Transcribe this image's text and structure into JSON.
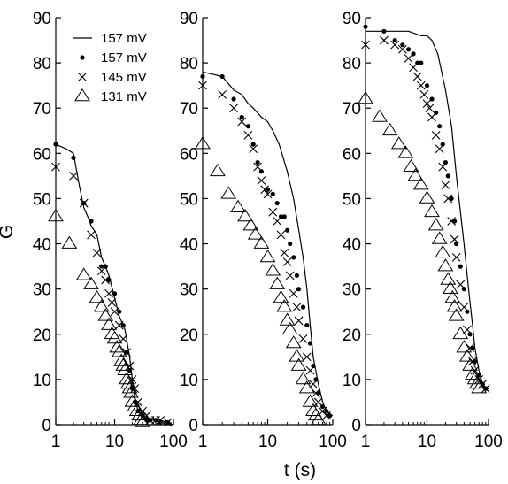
{
  "chart_data": [
    {
      "type": "scatter",
      "xscale": "log",
      "xlim": [
        1,
        100
      ],
      "ylim": [
        0,
        90
      ],
      "x_ticks": [
        1,
        10,
        100
      ],
      "y_ticks": [
        0,
        10,
        20,
        30,
        40,
        50,
        60,
        70,
        80,
        90
      ],
      "ylabel": "G",
      "legend": {
        "position": "top-right"
      },
      "series": [
        {
          "name": "157 mV",
          "marker": "line",
          "x": [
            1,
            1.5,
            2,
            2.5,
            3,
            3.5,
            4,
            5,
            6,
            7,
            8,
            10,
            12,
            15,
            18,
            20,
            22,
            25,
            30,
            40,
            60,
            100
          ],
          "y": [
            62,
            61,
            60,
            53,
            48,
            46,
            44,
            42,
            37,
            35,
            33,
            28,
            24,
            21,
            15,
            10,
            6,
            3,
            2,
            1,
            1,
            0
          ]
        },
        {
          "name": "157 mV",
          "marker": "dot",
          "x": [
            1,
            2,
            3,
            4,
            6,
            7,
            8,
            10,
            12,
            14,
            16,
            18,
            20,
            22,
            25,
            30,
            35,
            40,
            50,
            60,
            80
          ],
          "y": [
            62,
            59,
            49,
            45,
            35,
            35,
            32,
            29,
            25,
            22,
            16,
            12,
            8,
            5,
            3,
            2,
            1,
            1,
            1,
            0.5,
            0.5
          ]
        },
        {
          "name": "145 mV",
          "marker": "cross",
          "x": [
            1,
            2,
            3,
            4,
            5,
            6,
            7,
            8,
            9,
            10,
            12,
            14,
            16,
            18,
            20,
            22,
            25,
            30,
            35,
            40,
            50,
            60,
            80
          ],
          "y": [
            57,
            55,
            49,
            42,
            38,
            34,
            32,
            29,
            27,
            25,
            22,
            19,
            16,
            13,
            10,
            8,
            5,
            3,
            2,
            1,
            1,
            1,
            0.5
          ]
        },
        {
          "name": "131 mV",
          "marker": "triangle",
          "x": [
            1,
            1.7,
            3,
            4,
            5,
            6,
            7,
            8,
            9,
            10,
            11,
            12,
            13,
            14,
            15,
            16,
            17,
            18,
            19,
            20,
            22,
            24,
            26,
            28,
            30
          ],
          "y": [
            46,
            40,
            33,
            31,
            28,
            26,
            24,
            22,
            20,
            19,
            17,
            16,
            14,
            13,
            12,
            10,
            9,
            8,
            7,
            5,
            4,
            3,
            2,
            1,
            0.5
          ]
        }
      ]
    },
    {
      "type": "scatter",
      "xscale": "log",
      "xlim": [
        1,
        100
      ],
      "ylim": [
        0,
        90
      ],
      "x_ticks": [
        1,
        10,
        100
      ],
      "y_ticks": [
        0,
        10,
        20,
        30,
        40,
        50,
        60,
        70,
        80,
        90
      ],
      "xlabel": "t (s)",
      "series": [
        {
          "marker": "line",
          "x": [
            1,
            2,
            3,
            4,
            5,
            6,
            8,
            10,
            12,
            15,
            20,
            25,
            30,
            35,
            40,
            45,
            50,
            60,
            70,
            80,
            100
          ],
          "y": [
            78,
            77,
            74,
            73,
            71,
            70,
            68,
            67,
            65,
            62,
            56,
            50,
            43,
            37,
            30,
            22,
            15,
            9,
            5,
            3,
            2
          ]
        },
        {
          "marker": "dot",
          "x": [
            1,
            2,
            3,
            4,
            5,
            6,
            7,
            8,
            10,
            12,
            14,
            16,
            18,
            20,
            22,
            25,
            28,
            30,
            35,
            40,
            45,
            50,
            55,
            60,
            70,
            80,
            90
          ],
          "y": [
            77,
            77,
            72,
            68,
            66,
            62,
            58,
            56,
            52,
            51,
            49,
            46,
            46,
            43,
            40,
            37,
            33,
            30,
            26,
            22,
            18,
            13,
            10,
            7,
            4,
            3,
            2
          ]
        },
        {
          "marker": "cross",
          "x": [
            1,
            2,
            3,
            4,
            5,
            6,
            7,
            8,
            9,
            10,
            12,
            14,
            16,
            18,
            20,
            22,
            25,
            28,
            30,
            35,
            40,
            45,
            50,
            55,
            60,
            70,
            80
          ],
          "y": [
            75,
            73,
            70,
            67,
            64,
            61,
            57,
            54,
            52,
            51,
            47,
            45,
            42,
            38,
            36,
            33,
            29,
            26,
            23,
            19,
            15,
            12,
            9,
            7,
            5,
            3,
            2
          ]
        },
        {
          "marker": "triangle",
          "x": [
            1,
            1.7,
            2.5,
            3.5,
            4.5,
            5.5,
            6.5,
            8,
            10,
            12,
            14,
            16,
            18,
            20,
            22,
            25,
            28,
            30,
            35,
            40,
            45,
            50,
            55,
            60
          ],
          "y": [
            62,
            56,
            51,
            48,
            46,
            44,
            42,
            40,
            37,
            34,
            31,
            28,
            26,
            23,
            21,
            18,
            15,
            13,
            10,
            8,
            5,
            3,
            2,
            1
          ]
        }
      ]
    },
    {
      "type": "scatter",
      "xscale": "log",
      "xlim": [
        1,
        100
      ],
      "ylim": [
        0,
        90
      ],
      "x_ticks": [
        1,
        10,
        100
      ],
      "y_ticks": [
        0,
        10,
        20,
        30,
        40,
        50,
        60,
        70,
        80,
        90
      ],
      "series": [
        {
          "marker": "line",
          "x": [
            1,
            2,
            3,
            5,
            8,
            10,
            12,
            15,
            20,
            25,
            30,
            35,
            40,
            45,
            50,
            55,
            60,
            70,
            80,
            90,
            100
          ],
          "y": [
            87,
            87,
            87,
            87,
            86,
            86,
            85,
            82,
            74,
            66,
            55,
            47,
            40,
            33,
            27,
            22,
            17,
            12,
            9,
            8,
            8
          ]
        },
        {
          "marker": "dot",
          "x": [
            1,
            2,
            3,
            4,
            5,
            6,
            7,
            8,
            10,
            12,
            14,
            16,
            18,
            20,
            22,
            25,
            28,
            30,
            35,
            40,
            45,
            50,
            55,
            60,
            70,
            80,
            90
          ],
          "y": [
            88,
            87,
            85,
            84,
            83,
            82,
            80,
            80,
            75,
            72,
            69,
            66,
            62,
            58,
            55,
            50,
            45,
            40,
            35,
            30,
            25,
            20,
            17,
            14,
            11,
            9,
            8
          ]
        },
        {
          "marker": "cross",
          "x": [
            1,
            2,
            3,
            4,
            5,
            6,
            7,
            8,
            9,
            10,
            11,
            12,
            14,
            16,
            18,
            20,
            22,
            25,
            28,
            30,
            35,
            40,
            45,
            50,
            55,
            60,
            70,
            80,
            90
          ],
          "y": [
            84,
            85,
            84,
            83,
            81,
            79,
            77,
            75,
            73,
            71,
            70,
            68,
            64,
            61,
            57,
            53,
            50,
            45,
            41,
            37,
            31,
            26,
            21,
            17,
            14,
            12,
            10,
            9,
            8
          ]
        },
        {
          "marker": "triangle",
          "x": [
            1,
            1.7,
            2.5,
            3.5,
            4.5,
            5.5,
            6.5,
            8,
            10,
            12,
            14,
            16,
            18,
            20,
            22,
            24,
            26,
            28,
            30,
            35,
            40,
            45,
            50,
            55,
            60,
            65,
            70
          ],
          "y": [
            72,
            68,
            65,
            62,
            60,
            57,
            55,
            53,
            50,
            47,
            44,
            41,
            38,
            35,
            32,
            30,
            28,
            26,
            24,
            20,
            17,
            15,
            13,
            11,
            10,
            9,
            8
          ]
        }
      ]
    }
  ]
}
